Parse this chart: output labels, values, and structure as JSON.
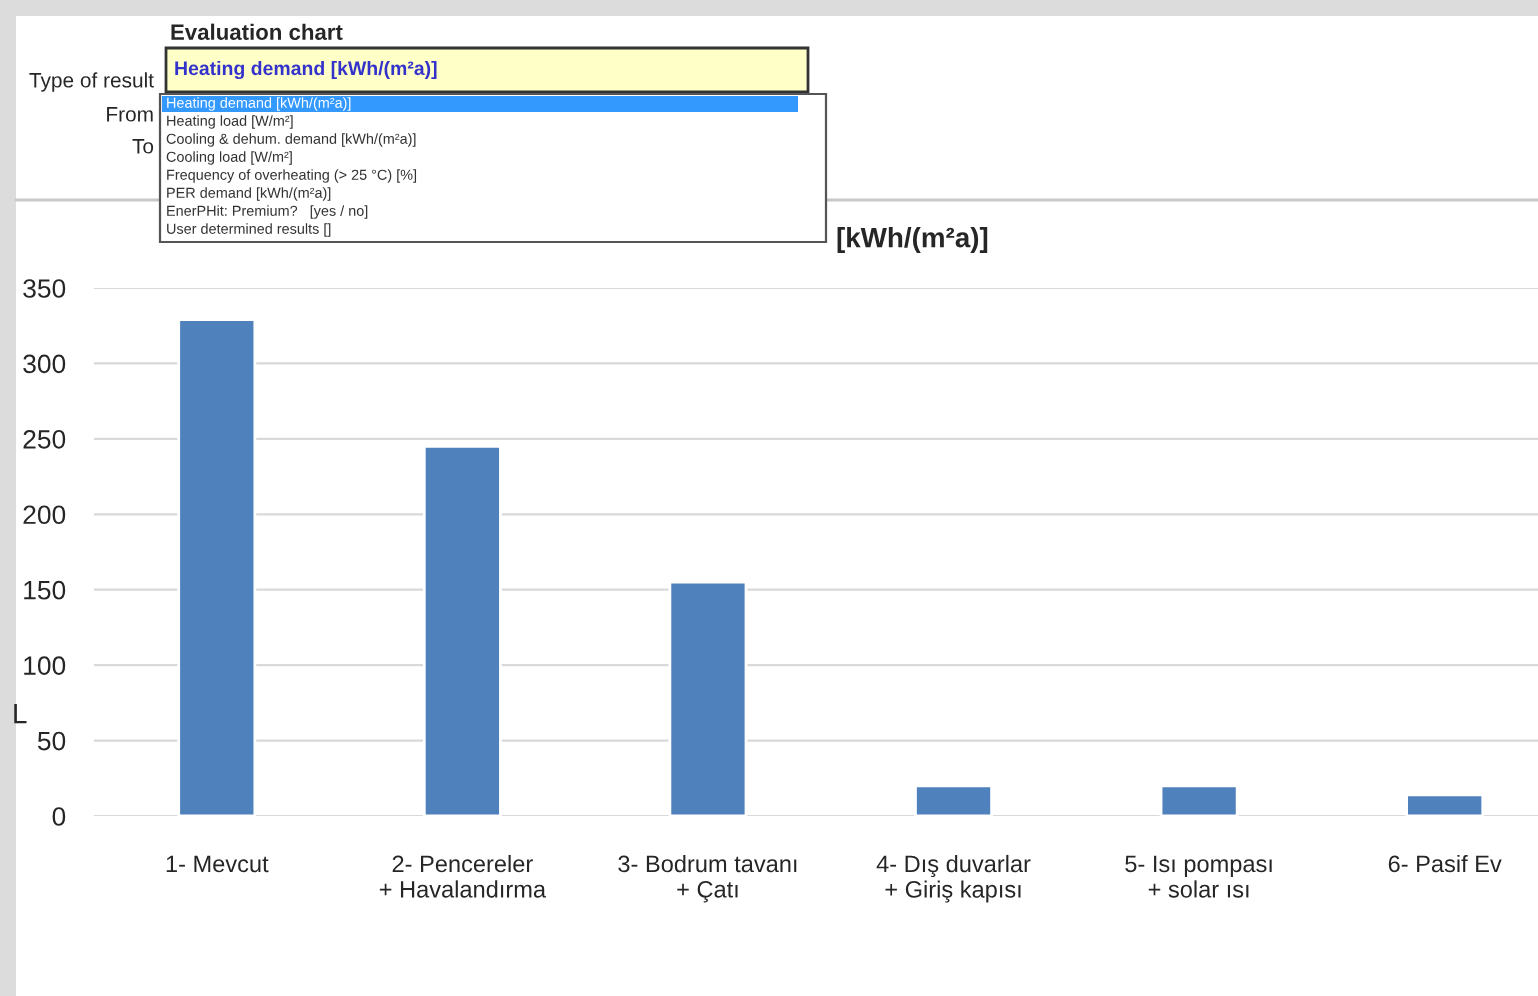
{
  "chart_data": {
    "type": "bar",
    "title": "[kWh/(m²a)]",
    "categories": [
      "1- Mevcut",
      "2- Pencereler\n+ Havalandırma",
      "3- Bodrum tavanı\n+ Çatı",
      "4- Dış duvarlar\n+ Giriş kapısı",
      "5- Isı pompası\n+ solar ısı",
      "6- Pasif Ev"
    ],
    "values": [
      329,
      245,
      155,
      20,
      20,
      14
    ],
    "color": "#4f81bd",
    "ylim": [
      0,
      350
    ],
    "yticks": [
      0,
      50,
      100,
      150,
      200,
      250,
      300,
      350
    ],
    "grid": "y",
    "annotations": [
      "Evaluation chart",
      "Type of result",
      "From",
      "To",
      "Heating demand [kWh/(m²a)]",
      "Heating demand [kWh/(m²a)]",
      "Heating load [W/m²]",
      "Cooling & dehum. demand [kWh/(m²a)]",
      "Cooling load [W/m²]",
      "Frequency of overheating (> 25 °C) [%]",
      "PER demand [kWh/(m²a)]",
      "EnerPHit: Premium?   [yes / no]",
      "User determined results []",
      "L"
    ]
  }
}
